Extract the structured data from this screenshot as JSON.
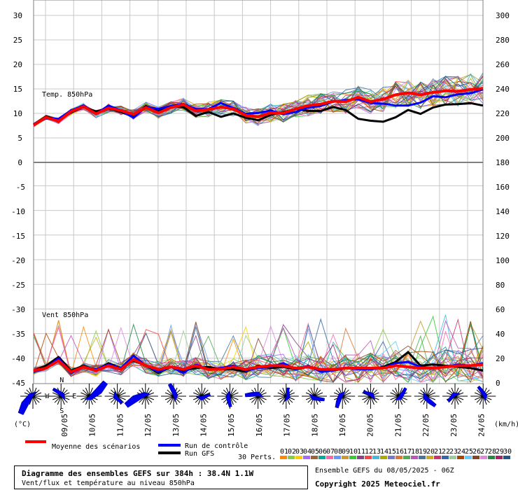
{
  "chart_data": {
    "type": "line",
    "panels": [
      {
        "name": "temperature",
        "label": "Temp. 850hPa",
        "unit_left": "(°C)",
        "left_ticks": [
          "30",
          "25",
          "20",
          "15",
          "10",
          "5",
          "0"
        ],
        "right_ticks": [
          "300",
          "280",
          "260",
          "240",
          "220",
          "200",
          "180"
        ]
      },
      {
        "name": "wind",
        "label": "Vent 850hPa",
        "unit_right": "(km/h)",
        "left_ticks": [
          "-5",
          "-10",
          "-15",
          "-20",
          "-25",
          "-30",
          "-35",
          "-40",
          "-45"
        ],
        "right_ticks": [
          "160",
          "140",
          "120",
          "100",
          "80",
          "60",
          "40",
          "20",
          "0"
        ]
      }
    ],
    "x_labels": [
      "09/05",
      "10/05",
      "11/05",
      "12/05",
      "13/05",
      "14/05",
      "15/05",
      "16/05",
      "17/05",
      "18/05",
      "19/05",
      "20/05",
      "21/05",
      "22/05",
      "23/05",
      "24/05"
    ],
    "series": [
      {
        "name": "Moyenne des scénarios",
        "color": "#ff0000",
        "temp": [
          7.6,
          9.2,
          8.4,
          10.4,
          11.4,
          9.9,
          11.1,
          10.6,
          9.8,
          11.2,
          10.1,
          11.2,
          11.8,
          10.5,
          10.8,
          11.3,
          10.9,
          9.6,
          9.3,
          10.1,
          10.1,
          10.9,
          11.6,
          11.9,
          12.5,
          12.4,
          13.3,
          12.4,
          12.9,
          13.8,
          14.2,
          13.8,
          14.3,
          14.6,
          14.5,
          14.9,
          15.1
        ],
        "wind": [
          10,
          12,
          18,
          9,
          13,
          10,
          14,
          11,
          19,
          14,
          11,
          13,
          11,
          14,
          11,
          11,
          13,
          11,
          13,
          14,
          14,
          12,
          13,
          11,
          11,
          12,
          12,
          12,
          12,
          14,
          13,
          12,
          12,
          13,
          14,
          14,
          15
        ]
      },
      {
        "name": "Run de contrôle",
        "color": "#0000ff",
        "temp": [
          7.8,
          9.0,
          8.9,
          10.6,
          11.6,
          9.9,
          11.6,
          10.6,
          9.1,
          11.3,
          10.9,
          11.5,
          11.9,
          10.9,
          10.9,
          12.1,
          11.1,
          9.9,
          10.1,
          10.6,
          9.8,
          10.3,
          11.2,
          11.5,
          12.4,
          12.7,
          12.9,
          12.1,
          12.0,
          11.6,
          11.6,
          12.2,
          13.5,
          13.3,
          13.9,
          14.1,
          14.9
        ],
        "wind": [
          9,
          12,
          20,
          8,
          13,
          11,
          15,
          12,
          22,
          14,
          9,
          13,
          8,
          15,
          11,
          12,
          14,
          10,
          12,
          13,
          16,
          11,
          14,
          9,
          10,
          12,
          11,
          11,
          12,
          16,
          17,
          13,
          12,
          13,
          15,
          14,
          16
        ]
      },
      {
        "name": "Run GFS",
        "color": "#000000",
        "temp": [
          7.7,
          9.4,
          8.6,
          10.2,
          11.3,
          10.4,
          11.0,
          10.3,
          9.3,
          11.5,
          10.5,
          11.4,
          11.3,
          9.5,
          10.3,
          9.3,
          10.0,
          9.1,
          8.6,
          9.7,
          10.3,
          10.9,
          10.5,
          10.5,
          11.3,
          10.7,
          8.9,
          8.5,
          8.3,
          9.2,
          10.7,
          9.9,
          11.2,
          11.8,
          11.9,
          12.1,
          11.6
        ],
        "wind": [
          10,
          14,
          21,
          10,
          14,
          10,
          16,
          12,
          18,
          14,
          8,
          13,
          10,
          12,
          13,
          11,
          11,
          9,
          14,
          12,
          13,
          11,
          13,
          10,
          10,
          12,
          12,
          11,
          13,
          17,
          25,
          14,
          15,
          14,
          13,
          12,
          10
        ]
      }
    ],
    "legend": {
      "mean": "Moyenne des scénarios",
      "control": "Run de contrôle",
      "gfs": "Run GFS",
      "perts_label": "30 Perts.",
      "members": [
        "01",
        "02",
        "03",
        "04",
        "05",
        "06",
        "07",
        "08",
        "09",
        "10",
        "11",
        "12",
        "13",
        "14",
        "15",
        "16",
        "17",
        "18",
        "19",
        "20",
        "21",
        "22",
        "23",
        "24",
        "25",
        "26",
        "27",
        "28",
        "29",
        "30"
      ],
      "member_colors": [
        "#ff8800",
        "#88cc44",
        "#ffcc00",
        "#aa66ff",
        "#996633",
        "#00aa99",
        "#ff66aa",
        "#6699ff",
        "#cc9933",
        "#33cc33",
        "#884488",
        "#ff4444",
        "#44bbdd",
        "#aaaa00",
        "#7777cc",
        "#dd7733",
        "#55aa55",
        "#bb55bb",
        "#447799",
        "#ccaa22",
        "#cc3377",
        "#3366aa",
        "#99cc99",
        "#aa4400",
        "#66ccff",
        "#884422",
        "#dd88dd",
        "#228844",
        "#aa2266",
        "#225588"
      ]
    },
    "grid": true
  },
  "compass": {
    "n": "N",
    "w": "W",
    "e": "E",
    "s": "S"
  },
  "info": {
    "title": "Diagramme des ensembles GEFS sur 384h : 38.4N 1.1W",
    "subtitle": "Vent/flux et température au niveau 850hPa",
    "run": "Ensemble GEFS du 08/05/2025 - 06Z",
    "copyright": "Copyright 2025 Meteociel.fr"
  }
}
